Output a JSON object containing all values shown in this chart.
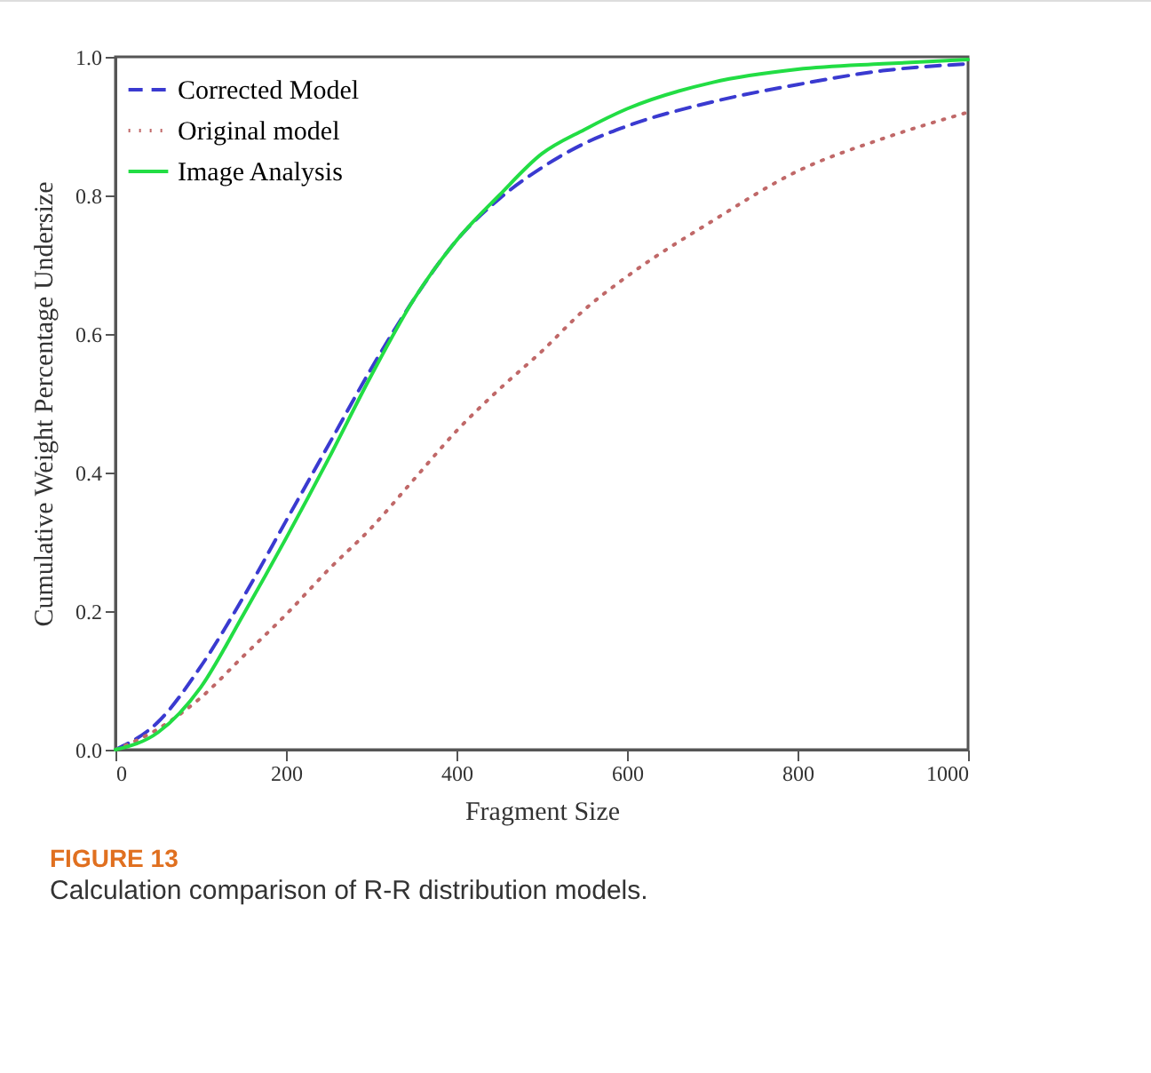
{
  "chart_data": {
    "type": "line",
    "title": "FIGURE 13",
    "subtitle": "Calculation comparison of R-R distribution models.",
    "xlabel": "Fragment Size",
    "ylabel": "Cumulative Weight Percentage Undersize",
    "x": [
      0,
      50,
      100,
      150,
      200,
      250,
      300,
      350,
      400,
      450,
      500,
      550,
      600,
      700,
      800,
      900,
      1000
    ],
    "series": [
      {
        "name": "Corrected Model",
        "color": "#3a3ad0",
        "line_style": "dashed",
        "values": [
          0,
          0.04,
          0.12,
          0.22,
          0.33,
          0.44,
          0.55,
          0.65,
          0.735,
          0.795,
          0.84,
          0.875,
          0.9,
          0.935,
          0.96,
          0.98,
          0.99
        ]
      },
      {
        "name": "Original model",
        "color": "#c06868",
        "line_style": "dotted",
        "values": [
          0,
          0.03,
          0.075,
          0.135,
          0.195,
          0.26,
          0.32,
          0.39,
          0.46,
          0.52,
          0.575,
          0.635,
          0.683,
          0.763,
          0.835,
          0.882,
          0.92
        ]
      },
      {
        "name": "Image Analysis",
        "color": "#22dd44",
        "line_style": "solid",
        "values": [
          0,
          0.025,
          0.09,
          0.195,
          0.305,
          0.42,
          0.54,
          0.65,
          0.735,
          0.8,
          0.86,
          0.895,
          0.925,
          0.963,
          0.982,
          0.99,
          0.996
        ]
      }
    ],
    "xlim": [
      0,
      1000
    ],
    "xticks": [
      0,
      200,
      400,
      600,
      800,
      1000
    ],
    "ylim": [
      0,
      1
    ],
    "yticks": [
      {
        "value": 0,
        "label": "0.0"
      },
      {
        "value": 0.2,
        "label": "0.2"
      },
      {
        "value": 0.4,
        "label": "0.4"
      },
      {
        "value": 0.6,
        "label": "0.6"
      },
      {
        "value": 0.8,
        "label": "0.8"
      },
      {
        "value": 1,
        "label": "1.0"
      }
    ],
    "grid": false,
    "legend": "top left",
    "marker": "none"
  }
}
